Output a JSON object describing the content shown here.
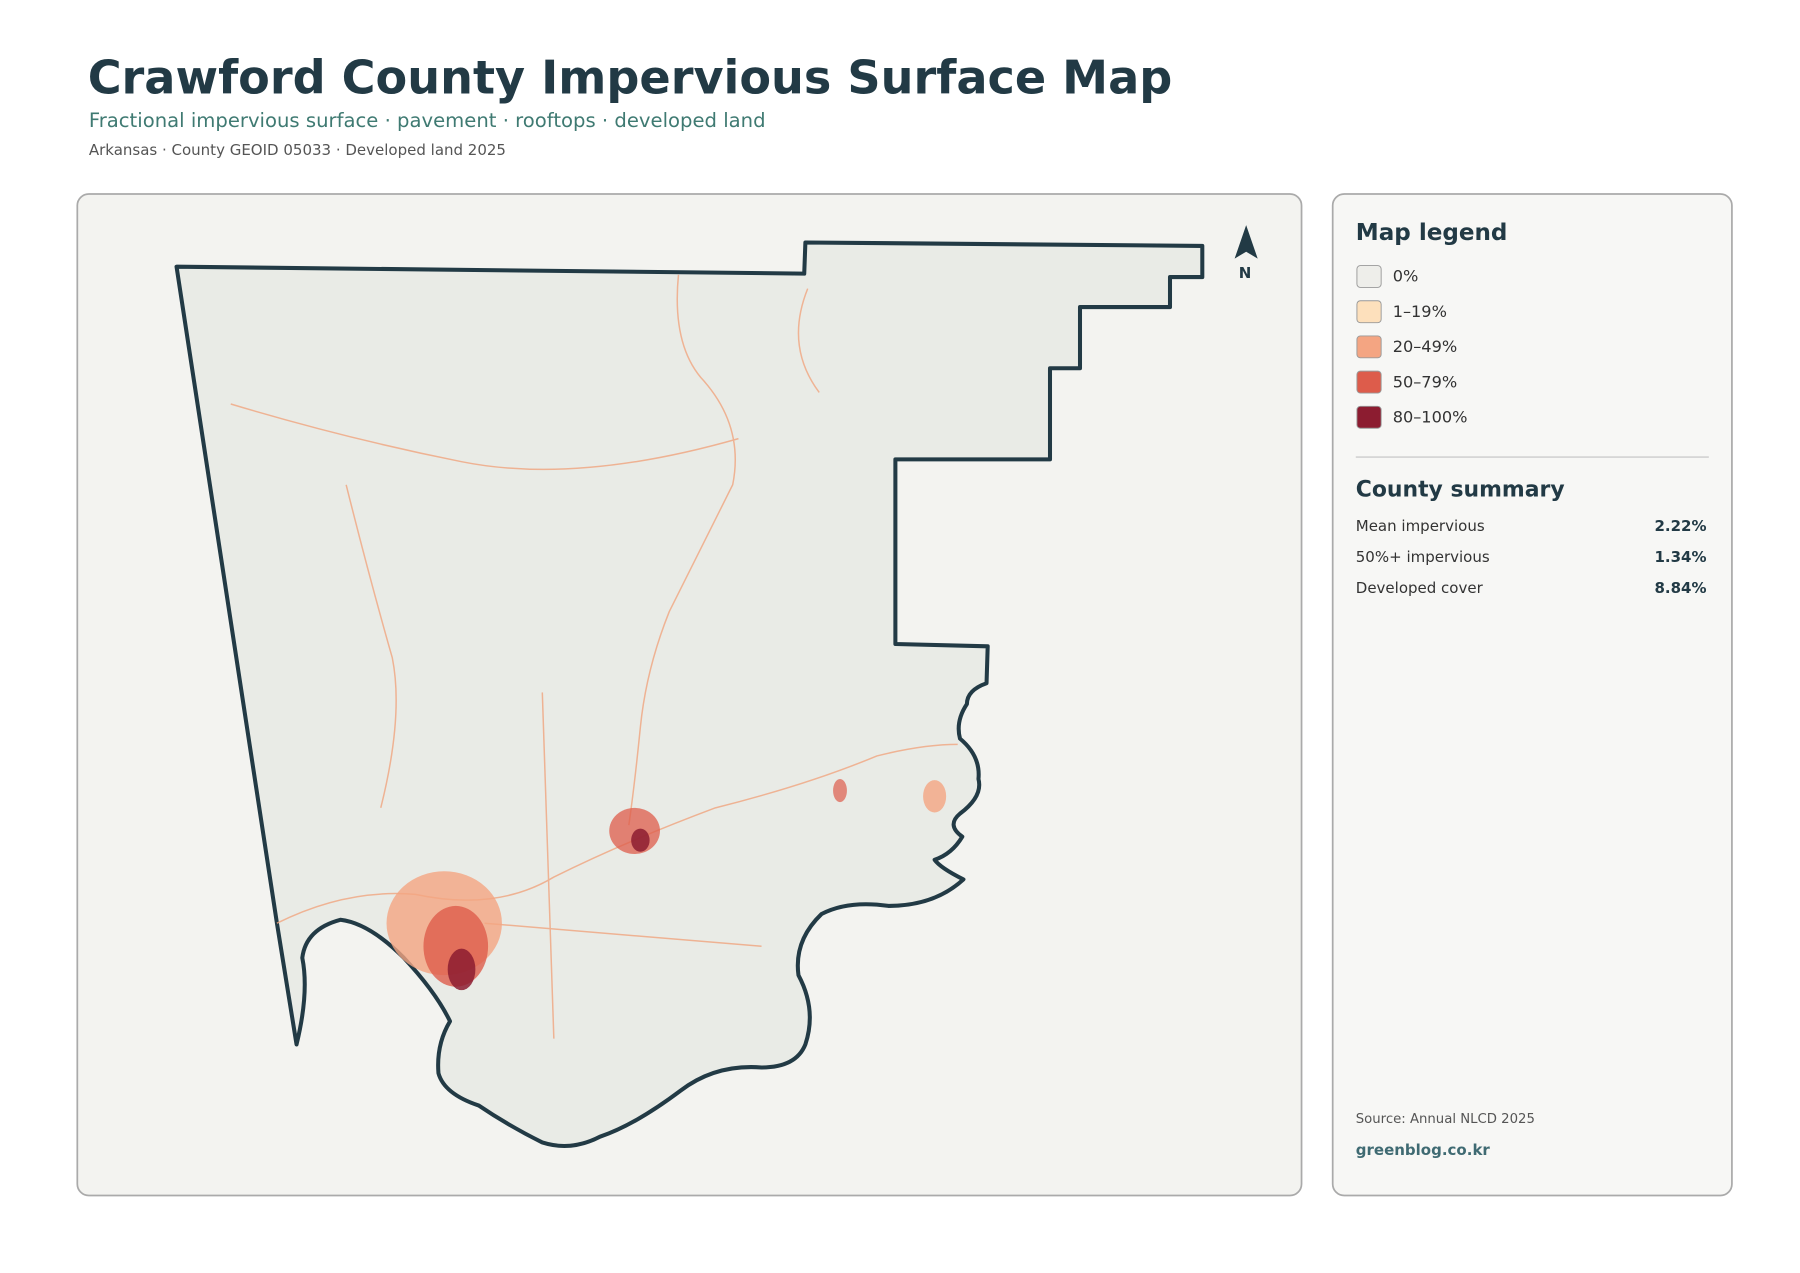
{
  "header": {
    "title": "Crawford County Impervious Surface Map",
    "subtitle": "Fractional impervious surface · pavement · rooftops · developed land",
    "meta": "Arkansas · County GEOID 05033 · Developed land 2025"
  },
  "map": {
    "north_label": "N"
  },
  "legend": {
    "title": "Map legend",
    "items": [
      {
        "label": "0%",
        "color": "#eeeeea"
      },
      {
        "label": "1–19%",
        "color": "#fde0bc"
      },
      {
        "label": "20–49%",
        "color": "#f4a582"
      },
      {
        "label": "50–79%",
        "color": "#dd5c4b"
      },
      {
        "label": "80–100%",
        "color": "#8c1c30"
      }
    ]
  },
  "summary": {
    "title": "County summary",
    "items": [
      {
        "label": "Mean impervious",
        "value": "2.22%"
      },
      {
        "label": "50%+ impervious",
        "value": "1.34%"
      },
      {
        "label": "Developed cover",
        "value": "8.84%"
      }
    ]
  },
  "footer": {
    "source": "Source: Annual NLCD 2025",
    "site": "greenblog.co.kr"
  }
}
